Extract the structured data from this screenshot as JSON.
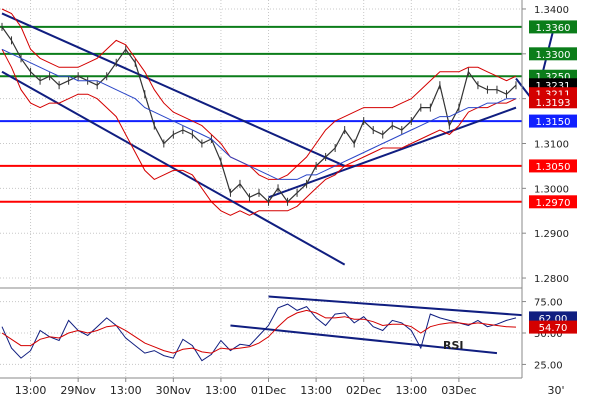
{
  "colors": {
    "price": "#333333",
    "bollinger": "#d40000",
    "moving_average": "#2b46c7",
    "channel": "#101e80",
    "green_level": "#0b7d1a",
    "blue_level": "#1020ff",
    "red_level": "#ff0000",
    "rsi": "#101e80",
    "rsi_signal": "#d40000",
    "arrow": "#101e80",
    "grid": "#c8c8c8",
    "axis_text": "#222222"
  },
  "chart_data": [
    {
      "type": "line",
      "title": "",
      "ylim": [
        1.278,
        1.342
      ],
      "y_ticks": [
        "1.3400",
        "1.3300",
        "1.3200",
        "1.3100",
        "1.3000",
        "1.2900",
        "1.2800"
      ],
      "x_ticks": [
        "13:00",
        "29Nov",
        "13:00",
        "30Nov",
        "13:00",
        "01Dec",
        "13:00",
        "02Dec",
        "13:00",
        "03Dec",
        "30'"
      ],
      "levels": [
        {
          "value": 1.336,
          "label": "1.3360",
          "color": "#0b7d1a",
          "kind": "resistance"
        },
        {
          "value": 1.33,
          "label": "1.3300",
          "color": "#0b7d1a",
          "kind": "resistance"
        },
        {
          "value": 1.325,
          "label": "1.3250",
          "color": "#0b7d1a",
          "kind": "resistance"
        },
        {
          "value": 1.315,
          "label": "1.3150",
          "color": "#1020ff",
          "kind": "support"
        },
        {
          "value": 1.305,
          "label": "1.3050",
          "color": "#ff0000",
          "kind": "support"
        },
        {
          "value": 1.297,
          "label": "1.2970",
          "color": "#ff0000",
          "kind": "support"
        }
      ],
      "price_labels": [
        {
          "value": 1.3231,
          "label": "1.3231",
          "bg": "#000000"
        },
        {
          "value": 1.3211,
          "label": "1.3211",
          "bg": "#d40000"
        },
        {
          "value": 1.3193,
          "label": "1.3193",
          "bg": "#d40000"
        }
      ],
      "series": [
        {
          "kind": "price",
          "values": [
            1.336,
            1.333,
            1.329,
            1.326,
            1.324,
            1.325,
            1.323,
            1.324,
            1.325,
            1.324,
            1.323,
            1.325,
            1.328,
            1.331,
            1.328,
            1.321,
            1.314,
            1.31,
            1.312,
            1.313,
            1.312,
            1.31,
            1.311,
            1.306,
            1.299,
            1.301,
            1.298,
            1.299,
            1.297,
            1.3,
            1.297,
            1.299,
            1.301,
            1.305,
            1.307,
            1.309,
            1.313,
            1.31,
            1.315,
            1.313,
            1.312,
            1.314,
            1.313,
            1.315,
            1.318,
            1.318,
            1.323,
            1.314,
            1.318,
            1.326,
            1.323,
            1.322,
            1.322,
            1.321,
            1.323
          ]
        },
        {
          "kind": "bollinger_upper",
          "values": [
            1.34,
            1.339,
            1.336,
            1.331,
            1.329,
            1.328,
            1.327,
            1.327,
            1.327,
            1.328,
            1.329,
            1.331,
            1.333,
            1.332,
            1.329,
            1.326,
            1.322,
            1.319,
            1.317,
            1.316,
            1.315,
            1.314,
            1.312,
            1.31,
            1.307,
            1.306,
            1.305,
            1.303,
            1.302,
            1.302,
            1.303,
            1.305,
            1.307,
            1.31,
            1.313,
            1.315,
            1.316,
            1.317,
            1.318,
            1.318,
            1.318,
            1.318,
            1.319,
            1.32,
            1.322,
            1.324,
            1.326,
            1.326,
            1.326,
            1.327,
            1.327,
            1.326,
            1.325,
            1.324,
            1.325
          ]
        },
        {
          "kind": "bollinger_lower",
          "values": [
            1.331,
            1.327,
            1.322,
            1.319,
            1.318,
            1.319,
            1.319,
            1.32,
            1.321,
            1.321,
            1.32,
            1.318,
            1.316,
            1.312,
            1.308,
            1.304,
            1.302,
            1.303,
            1.304,
            1.304,
            1.303,
            1.3,
            1.297,
            1.295,
            1.294,
            1.295,
            1.294,
            1.295,
            1.295,
            1.295,
            1.295,
            1.296,
            1.298,
            1.3,
            1.302,
            1.303,
            1.305,
            1.306,
            1.307,
            1.308,
            1.309,
            1.309,
            1.309,
            1.31,
            1.311,
            1.312,
            1.313,
            1.312,
            1.314,
            1.317,
            1.318,
            1.318,
            1.319,
            1.319,
            1.32
          ]
        },
        {
          "kind": "moving_average",
          "values": [
            1.331,
            1.33,
            1.329,
            1.328,
            1.327,
            1.326,
            1.325,
            1.325,
            1.324,
            1.324,
            1.324,
            1.323,
            1.322,
            1.321,
            1.32,
            1.318,
            1.317,
            1.316,
            1.315,
            1.314,
            1.313,
            1.312,
            1.311,
            1.309,
            1.307,
            1.306,
            1.305,
            1.304,
            1.303,
            1.302,
            1.302,
            1.302,
            1.303,
            1.303,
            1.304,
            1.305,
            1.306,
            1.307,
            1.308,
            1.309,
            1.31,
            1.311,
            1.312,
            1.313,
            1.314,
            1.315,
            1.316,
            1.316,
            1.317,
            1.318,
            1.318,
            1.319,
            1.319,
            1.32,
            1.32
          ]
        }
      ],
      "trend_lines": [
        {
          "name": "channel-upper",
          "from": [
            0,
            1.339
          ],
          "to": [
            36,
            1.305
          ]
        },
        {
          "name": "channel-lower",
          "from": [
            0,
            1.326
          ],
          "to": [
            36,
            1.283
          ]
        },
        {
          "name": "rising-support",
          "from": [
            28,
            1.298
          ],
          "to": [
            54,
            1.318
          ]
        }
      ],
      "projection": {
        "points": [
          [
            54,
            1.3245
          ],
          [
            56,
            1.319
          ],
          [
            58,
            1.336
          ]
        ]
      }
    },
    {
      "type": "line",
      "title": "",
      "label": "RSI",
      "ylim": [
        15,
        85
      ],
      "y_ticks": [
        "75.00",
        "50.00",
        "25.00"
      ],
      "value_labels": [
        {
          "value": 62.0,
          "label": "62.00",
          "bg": "#101e80"
        },
        {
          "value": 54.7,
          "label": "54.70",
          "bg": "#d40000"
        }
      ],
      "series": [
        {
          "kind": "rsi",
          "values": [
            55,
            38,
            30,
            36,
            52,
            47,
            44,
            60,
            52,
            48,
            55,
            62,
            56,
            46,
            40,
            34,
            36,
            32,
            30,
            45,
            40,
            28,
            33,
            44,
            36,
            41,
            40,
            48,
            56,
            70,
            73,
            68,
            71,
            62,
            56,
            65,
            66,
            58,
            63,
            55,
            52,
            60,
            58,
            52,
            38,
            65,
            62,
            60,
            58,
            56,
            60,
            55,
            57,
            60,
            62
          ]
        },
        {
          "kind": "rsi_signal",
          "values": [
            50,
            45,
            40,
            40,
            45,
            47,
            46,
            50,
            52,
            50,
            52,
            55,
            56,
            52,
            47,
            42,
            39,
            36,
            34,
            37,
            38,
            35,
            34,
            38,
            37,
            38,
            39,
            42,
            47,
            55,
            62,
            66,
            68,
            66,
            62,
            62,
            63,
            61,
            61,
            59,
            56,
            57,
            57,
            55,
            50,
            55,
            57,
            58,
            58,
            57,
            58,
            57,
            56,
            55,
            54.7
          ]
        }
      ],
      "trend_lines": [
        {
          "name": "rsi-upper",
          "from": [
            28,
            79
          ],
          "to": [
            55,
            64
          ]
        },
        {
          "name": "rsi-lower",
          "from": [
            24,
            56
          ],
          "to": [
            52,
            34
          ]
        }
      ]
    }
  ]
}
